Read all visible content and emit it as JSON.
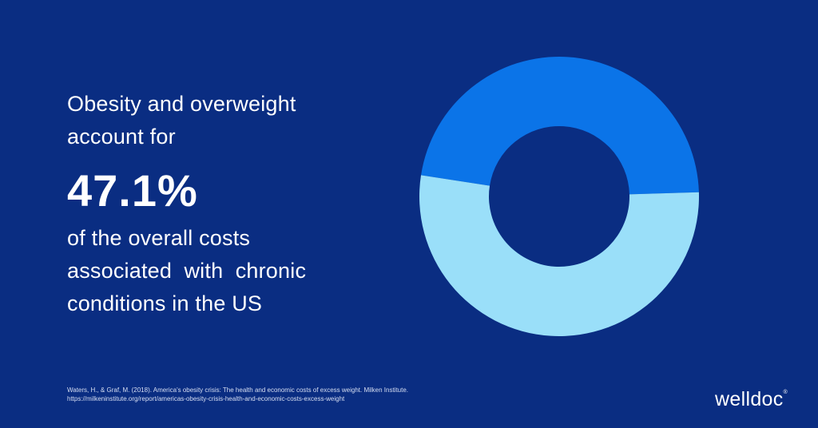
{
  "headline": {
    "lead_line1": "Obesity and overweight",
    "lead_line2": "account for",
    "big_value": "47.1%",
    "trail_line1": "of the overall costs",
    "trail_line2": "associated  with  chronic",
    "trail_line3": "conditions in the US"
  },
  "source": {
    "line1": "Waters, H., & Graf, M. (2018). America's obesity crisis: The health and economic costs of excess weight. Milken Institute.",
    "line2": "https://milkeninstitute.org/report/americas-obesity-crisis-health-and-economic-costs-excess-weight"
  },
  "brand": {
    "logo_text": "welldoc",
    "logo_mark": "®"
  },
  "colors": {
    "background": "#0a2d82",
    "highlight_segment": "#0b74e8",
    "remainder_segment": "#9adff9"
  },
  "chart_data": {
    "type": "pie",
    "variant": "donut",
    "segments": [
      {
        "value": 47.1,
        "color": "#0b74e8"
      },
      {
        "value": 52.9,
        "color": "#9adff9"
      }
    ],
    "legend": "none"
  }
}
